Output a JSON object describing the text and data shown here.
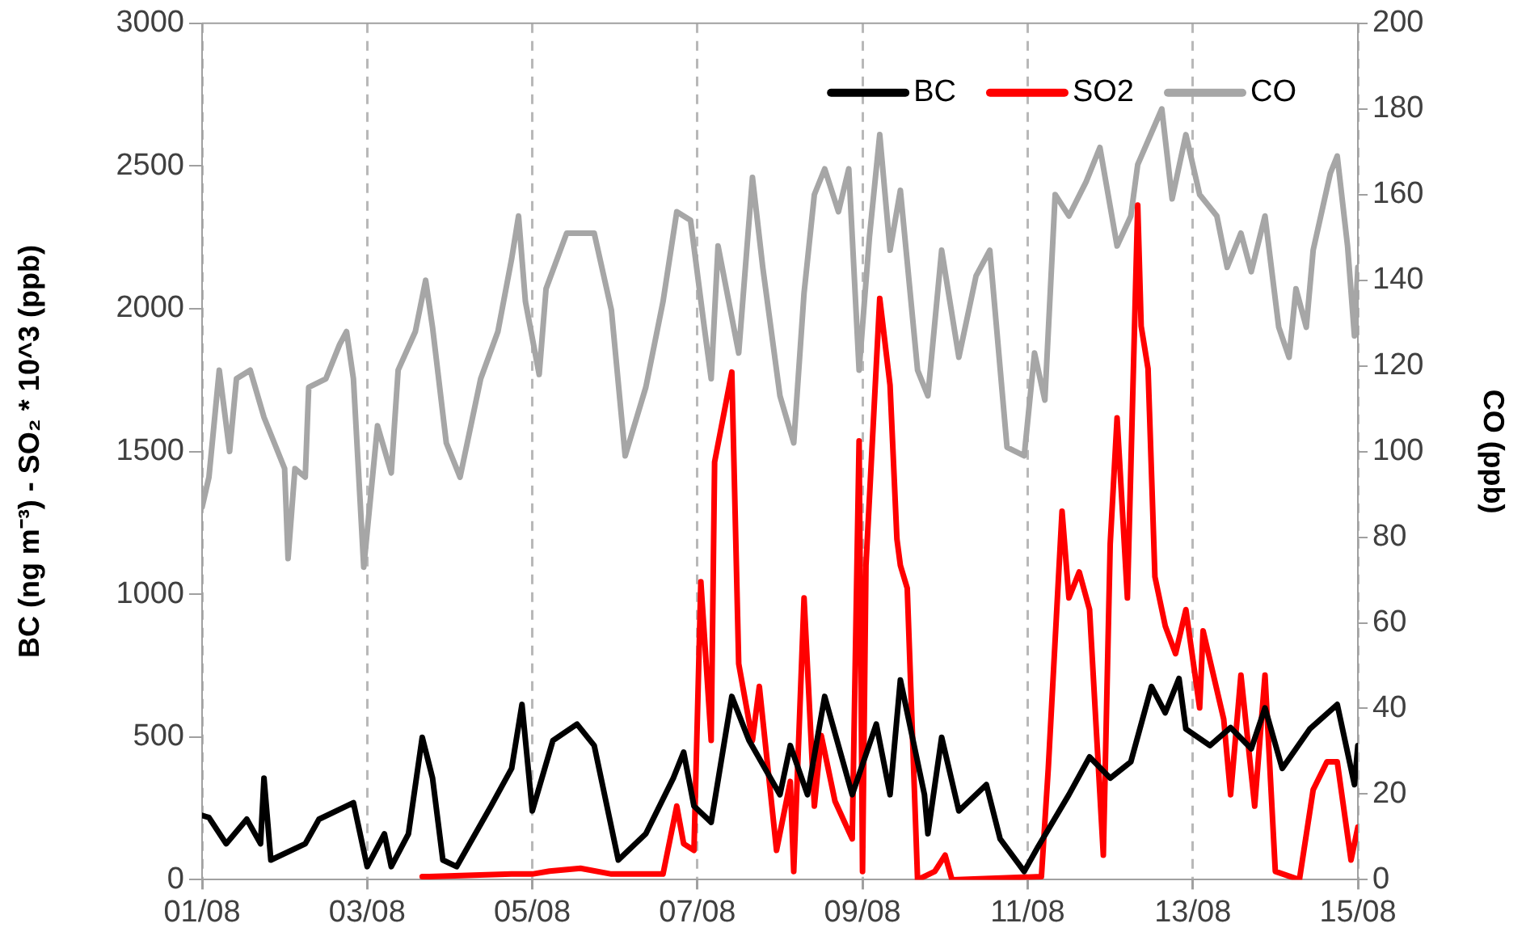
{
  "chart_data": {
    "type": "line",
    "ylabel": "BC (ng m⁻³) - SO₂ * 10^3 (ppb)",
    "y2label": "CO (ppb)",
    "xlim": [
      "--08-01",
      "--08-15"
    ],
    "xticks": [
      {
        "value": "--08-01",
        "label": "01/08"
      },
      {
        "value": "--08-03",
        "label": "03/08"
      },
      {
        "value": "--08-05",
        "label": "05/08"
      },
      {
        "value": "--08-07",
        "label": "07/08"
      },
      {
        "value": "--08-09",
        "label": "09/08"
      },
      {
        "value": "--08-11",
        "label": "11/08"
      },
      {
        "value": "--08-13",
        "label": "13/08"
      },
      {
        "value": "--08-15",
        "label": "15/08"
      }
    ],
    "ylim": [
      0,
      3000
    ],
    "yticks": [
      0,
      500,
      1000,
      1500,
      2000,
      2500,
      3000
    ],
    "y2lim": [
      0,
      200
    ],
    "y2ticks": [
      0,
      20,
      40,
      60,
      80,
      100,
      120,
      140,
      160,
      180,
      200
    ],
    "grid": "x",
    "legend": "top right",
    "series": [
      {
        "name": "BC",
        "color": "#000000",
        "x": [
          "--08-01T00:00",
          "--08-01T02:00",
          "--08-01T07:00",
          "--08-01T13:00",
          "--08-01T17:00",
          "--08-01T18:00",
          "--08-01T20:00",
          "--08-02T06:00",
          "--08-02T10:00",
          "--08-02T20:00",
          "--08-03T00:00",
          "--08-03T05:00",
          "--08-03T07:00",
          "--08-03T12:00",
          "--08-03T16:00",
          "--08-03T19:00",
          "--08-03T22:00",
          "--08-04T02:00",
          "--08-04T12:00",
          "--08-04T18:00",
          "--08-04T21:00",
          "--08-05T00:00",
          "--08-05T06:00",
          "--08-05T13:00",
          "--08-05T18:00",
          "--08-06T01:00",
          "--08-06T09:00",
          "--08-06T17:00",
          "--08-06T20:00",
          "--08-06T23:00",
          "--08-07T04:00",
          "--08-07T10:00",
          "--08-07T15:00",
          "--08-08T00:00",
          "--08-08T03:00",
          "--08-08T08:00",
          "--08-08T13:00",
          "--08-08T21:00",
          "--08-09T04:00",
          "--08-09T08:00",
          "--08-09T11:00",
          "--08-09T18:00",
          "--08-09T19:00",
          "--08-09T23:00",
          "--08-10T04:00",
          "--08-10T12:00",
          "--08-10T16:00",
          "--08-10T23:00",
          "--08-11T03:00",
          "--08-11T12:00",
          "--08-11T18:00",
          "--08-12T00:00",
          "--08-12T06:00",
          "--08-12T12:00",
          "--08-12T16:00",
          "--08-12T20:00",
          "--08-12T22:00",
          "--08-13T05:00",
          "--08-13T11:00",
          "--08-13T17:00",
          "--08-13T21:00",
          "--08-14T02:00",
          "--08-14T10:00",
          "--08-14T18:00",
          "--08-14T23:00",
          "--08-15T00:00"
        ],
        "values": [
          225,
          218,
          126,
          212,
          126,
          356,
          69,
          126,
          212,
          270,
          46,
          161,
          46,
          161,
          499,
          356,
          69,
          46,
          258,
          390,
          614,
          241,
          488,
          545,
          470,
          69,
          161,
          356,
          447,
          258,
          201,
          642,
          488,
          298,
          470,
          298,
          642,
          298,
          545,
          298,
          700,
          298,
          161,
          499,
          241,
          333,
          143,
          29,
          115,
          298,
          430,
          356,
          413,
          677,
          585,
          705,
          528,
          470,
          533,
          459,
          602,
          390,
          528,
          614,
          333,
          470
        ]
      },
      {
        "name": "SO2",
        "color": "#ff0000",
        "x": [
          "--08-03T16:00",
          "--08-03T18:00",
          "--08-04T18:00",
          "--08-05T00:00",
          "--08-05T05:00",
          "--08-05T14:00",
          "--08-05T23:00",
          "--08-06T14:00",
          "--08-06T18:00",
          "--08-06T20:00",
          "--08-06T23:00",
          "--08-07T01:00",
          "--08-07T04:00",
          "--08-07T05:00",
          "--08-07T10:00",
          "--08-07T12:00",
          "--08-07T16:00",
          "--08-07T18:00",
          "--08-07T23:00",
          "--08-08T03:00",
          "--08-08T04:00",
          "--08-08T07:00",
          "--08-08T10:00",
          "--08-08T12:00",
          "--08-08T16:00",
          "--08-08T21:00",
          "--08-08T23:00",
          "--08-09T00:00",
          "--08-09T01:00",
          "--08-09T05:00",
          "--08-09T08:00",
          "--08-09T10:00",
          "--08-09T11:00",
          "--08-09T13:00",
          "--08-09T16:00",
          "--08-09T21:00",
          "--08-10T00:00",
          "--08-10T02:00",
          "--08-11T04:00",
          "--08-11T06:00",
          "--08-11T10:00",
          "--08-11T12:00",
          "--08-11T15:00",
          "--08-11T18:00",
          "--08-11T22:00",
          "--08-12T00:00",
          "--08-12T02:00",
          "--08-12T05:00",
          "--08-12T08:00",
          "--08-12T09:00",
          "--08-12T11:00",
          "--08-12T13:00",
          "--08-12T16:00",
          "--08-12T19:00",
          "--08-12T22:00",
          "--08-13T02:00",
          "--08-13T03:00",
          "--08-13T09:00",
          "--08-13T11:00",
          "--08-13T14:00",
          "--08-13T18:00",
          "--08-13T21:00",
          "--08-14T00:00",
          "--08-14T07:00",
          "--08-14T11:00",
          "--08-14T15:00",
          "--08-14T18:00",
          "--08-14T22:00",
          "--08-15T00:00"
        ],
        "values": [
          11,
          11,
          20,
          20,
          30,
          40,
          20,
          20,
          258,
          126,
          103,
          1044,
          488,
          1463,
          1778,
          757,
          488,
          677,
          103,
          344,
          29,
          987,
          258,
          505,
          275,
          143,
          1537,
          29,
          1101,
          2036,
          1732,
          1193,
          1101,
          1021,
          0,
          29,
          86,
          0,
          11,
          390,
          1291,
          987,
          1078,
          946,
          86,
          1176,
          1618,
          987,
          2363,
          1939,
          1790,
          1061,
          889,
          792,
          946,
          602,
          872,
          562,
          298,
          717,
          258,
          717,
          29,
          0,
          315,
          413,
          413,
          69,
          184
        ]
      },
      {
        "name": "CO",
        "color": "#a6a6a6",
        "axis": "y2",
        "x": [
          "--08-01T00:00",
          "--08-01T02:00",
          "--08-01T05:00",
          "--08-01T08:00",
          "--08-01T10:00",
          "--08-01T14:00",
          "--08-01T18:00",
          "--08-02T00:00",
          "--08-02T01:00",
          "--08-02T03:00",
          "--08-02T06:00",
          "--08-02T07:00",
          "--08-02T12:00",
          "--08-02T16:00",
          "--08-02T18:00",
          "--08-02T20:00",
          "--08-02T23:00",
          "--08-03T03:00",
          "--08-03T07:00",
          "--08-03T09:00",
          "--08-03T14:00",
          "--08-03T17:00",
          "--08-03T19:00",
          "--08-03T23:00",
          "--08-04T03:00",
          "--08-04T09:00",
          "--08-04T14:00",
          "--08-04T18:00",
          "--08-04T20:00",
          "--08-04T22:00",
          "--08-05T02:00",
          "--08-05T04:00",
          "--08-05T10:00",
          "--08-05T18:00",
          "--08-05T23:00",
          "--08-06T03:00",
          "--08-06T09:00",
          "--08-06T14:00",
          "--08-06T18:00",
          "--08-06T22:00",
          "--08-07T02:00",
          "--08-07T04:00",
          "--08-07T06:00",
          "--08-07T12:00",
          "--08-07T16:00",
          "--08-07T19:00",
          "--08-08T00:00",
          "--08-08T04:00",
          "--08-08T07:00",
          "--08-08T10:00",
          "--08-08T13:00",
          "--08-08T17:00",
          "--08-08T20:00",
          "--08-08T23:00",
          "--08-09T02:00",
          "--08-09T05:00",
          "--08-09T08:00",
          "--08-09T11:00",
          "--08-09T16:00",
          "--08-09T19:00",
          "--08-09T23:00",
          "--08-10T04:00",
          "--08-10T09:00",
          "--08-10T13:00",
          "--08-10T18:00",
          "--08-10T23:00",
          "--08-11T02:00",
          "--08-11T05:00",
          "--08-11T08:00",
          "--08-11T12:00",
          "--08-11T17:00",
          "--08-11T21:00",
          "--08-12T02:00",
          "--08-12T06:00",
          "--08-12T08:00",
          "--08-12T15:00",
          "--08-12T18:00",
          "--08-12T22:00",
          "--08-13T02:00",
          "--08-13T07:00",
          "--08-13T10:00",
          "--08-13T14:00",
          "--08-13T17:00",
          "--08-13T21:00",
          "--08-14T01:00",
          "--08-14T04:00",
          "--08-14T06:00",
          "--08-14T09:00",
          "--08-14T11:00",
          "--08-14T16:00",
          "--08-14T18:00",
          "--08-14T21:00",
          "--08-14T23:00",
          "--08-15T00:00"
        ],
        "values": [
          87,
          94,
          119,
          100,
          117,
          119,
          108,
          96,
          75,
          96,
          94,
          115,
          117,
          125,
          128,
          117,
          73,
          106,
          95,
          119,
          128,
          140,
          129,
          102,
          94,
          117,
          128,
          145,
          155,
          135,
          118,
          138,
          151,
          151,
          133,
          99,
          115,
          135,
          156,
          154,
          129,
          117,
          148,
          123,
          164,
          143,
          113,
          102,
          137,
          160,
          166,
          156,
          166,
          119,
          150,
          174,
          147,
          161,
          119,
          113,
          147,
          122,
          141,
          147,
          101,
          99,
          123,
          112,
          160,
          155,
          163,
          171,
          148,
          155,
          167,
          180,
          159,
          174,
          160,
          155,
          143,
          151,
          142,
          155,
          129,
          122,
          138,
          129,
          147,
          165,
          169,
          148,
          127,
          143
        ]
      }
    ]
  }
}
